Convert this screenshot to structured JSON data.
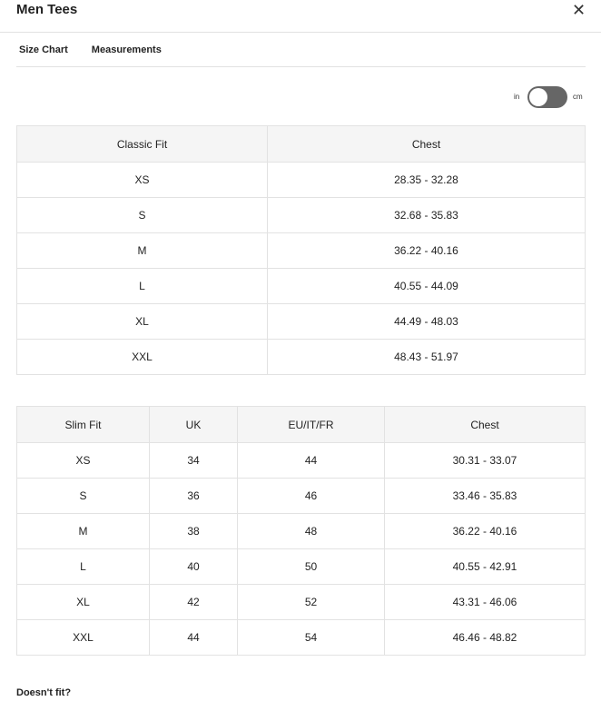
{
  "header": {
    "title": "Men Tees",
    "close_icon": "close-icon"
  },
  "tabs": [
    {
      "label": "Size Chart",
      "active": true
    },
    {
      "label": "Measurements",
      "active": false
    }
  ],
  "unit_toggle": {
    "left": "in",
    "right": "cm",
    "selected": "in"
  },
  "classic": {
    "headers": [
      "Classic Fit",
      "Chest"
    ],
    "rows": [
      [
        "XS",
        "28.35 - 32.28"
      ],
      [
        "S",
        "32.68 - 35.83"
      ],
      [
        "M",
        "36.22 - 40.16"
      ],
      [
        "L",
        "40.55 - 44.09"
      ],
      [
        "XL",
        "44.49 - 48.03"
      ],
      [
        "XXL",
        "48.43 - 51.97"
      ]
    ]
  },
  "slim": {
    "headers": [
      "Slim Fit",
      "UK",
      "EU/IT/FR",
      "Chest"
    ],
    "rows": [
      [
        "XS",
        "34",
        "44",
        "30.31 - 33.07"
      ],
      [
        "S",
        "36",
        "46",
        "33.46 - 35.83"
      ],
      [
        "M",
        "38",
        "48",
        "36.22 - 40.16"
      ],
      [
        "L",
        "40",
        "50",
        "40.55 - 42.91"
      ],
      [
        "XL",
        "42",
        "52",
        "43.31 - 46.06"
      ],
      [
        "XXL",
        "44",
        "54",
        "46.46 - 48.82"
      ]
    ]
  },
  "footer": {
    "text": "Doesn't fit?"
  }
}
